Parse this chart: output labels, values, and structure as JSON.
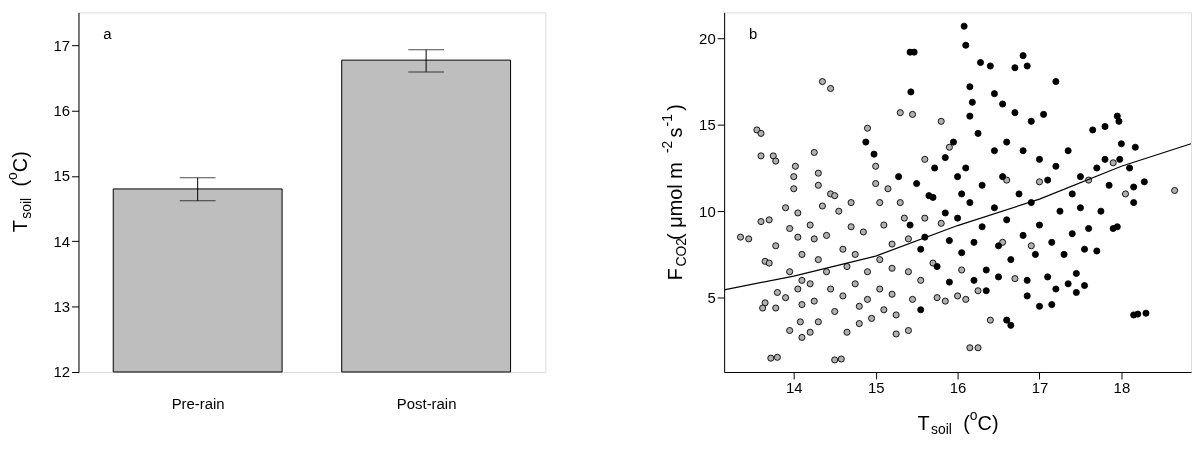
{
  "chart_data": [
    {
      "type": "bar",
      "categories": [
        "Pre-rain",
        "Post-rain"
      ],
      "values": [
        14.8,
        16.77
      ],
      "errors": [
        [
          14.62,
          14.97
        ],
        [
          16.59,
          16.93
        ]
      ],
      "color": "#bebebe",
      "ylabel": "T$_{soil}$ ($^{o}$C)",
      "ylim": [
        12,
        17.5
      ],
      "yticks": [
        12,
        13,
        14,
        15,
        16,
        17
      ],
      "annotations": [
        "a"
      ],
      "grid": false,
      "legend": false
    },
    {
      "type": "scatter",
      "xlabel": "T$_{soil}$ ($^{o}$C)",
      "ylabel": "F$_{CO2}$( μmol m$^{-2}$s$^{-1}$)",
      "xlim": [
        13.15,
        18.85
      ],
      "xticks": [
        14,
        15,
        16,
        17,
        18
      ],
      "ylim": [
        0.7,
        21.5
      ],
      "yticks": [
        5,
        10,
        15,
        20
      ],
      "annotations": [
        "b"
      ],
      "grid": false,
      "legend": false,
      "marker": "circle",
      "series": [
        {
          "color": "#b0b0b0",
          "x": [
            13.35,
            13.45,
            13.55,
            13.6,
            13.6,
            13.75,
            13.78,
            13.6,
            13.7,
            13.65,
            13.7,
            13.78,
            13.65,
            13.62,
            13.78,
            13.8,
            13.72,
            13.8,
            13.9,
            13.95,
            13.95,
            13.9,
            13.95,
            14.0,
            14.0,
            14.02,
            14.05,
            14.05,
            14.1,
            14.1,
            14.05,
            14.1,
            14.08,
            14.1,
            14.2,
            14.25,
            14.3,
            14.3,
            14.35,
            14.25,
            14.3,
            14.2,
            14.25,
            14.3,
            14.2,
            14.35,
            14.45,
            14.45,
            14.5,
            14.4,
            14.4,
            14.45,
            14.5,
            14.5,
            14.58,
            14.55,
            14.6,
            14.65,
            14.6,
            14.65,
            14.7,
            14.7,
            14.75,
            14.75,
            14.8,
            14.8,
            14.9,
            14.85,
            14.9,
            14.9,
            14.95,
            15.0,
            15.0,
            15.05,
            15.05,
            15.05,
            15.1,
            15.1,
            15.15,
            15.2,
            15.2,
            15.2,
            15.25,
            15.25,
            15.3,
            15.35,
            15.3,
            15.45,
            15.4,
            15.4,
            15.45,
            15.4,
            15.55,
            15.6,
            15.6,
            15.7,
            15.75,
            15.8,
            15.8,
            15.85,
            15.9,
            16.0,
            16.1,
            16.05,
            16.15,
            16.25,
            16.4,
            16.6,
            16.55,
            16.7,
            16.9,
            17.0,
            17.6,
            17.9,
            18.05,
            18.65,
            16.25
          ],
          "values": [
            8.5,
            8.4,
            14.7,
            14.5,
            13.2,
            13.2,
            12.9,
            9.4,
            9.5,
            7.1,
            7.0,
            8.0,
            4.7,
            4.4,
            4.4,
            5.3,
            1.5,
            1.55,
            10.2,
            9.0,
            6.5,
            5.0,
            3.1,
            11.3,
            12.0,
            12.6,
            9.9,
            8.5,
            7.5,
            6.0,
            5.5,
            4.6,
            3.6,
            2.7,
            9.2,
            13.4,
            12.2,
            11.5,
            10.3,
            8.4,
            7.2,
            5.8,
            4.8,
            3.6,
            3.0,
            17.5,
            17.1,
            11.0,
            10.9,
            8.6,
            6.5,
            5.5,
            4.2,
            1.4,
            1.45,
            10.0,
            7.8,
            6.8,
            5.1,
            3.0,
            10.5,
            9.1,
            7.5,
            5.8,
            4.5,
            3.5,
            14.8,
            8.8,
            6.5,
            4.9,
            3.8,
            12.6,
            11.6,
            10.5,
            7.2,
            5.5,
            4.3,
            9.2,
            11.3,
            8.1,
            6.7,
            5.2,
            4.0,
            2.9,
            10.5,
            9.6,
            15.7,
            15.6,
            8.4,
            6.5,
            4.9,
            3.1,
            6.0,
            13.0,
            9.6,
            7.0,
            5.0,
            15.2,
            9.3,
            4.8,
            13.7,
            5.1,
            4.9,
            6.6,
            2.1,
            2.1,
            3.7,
            11.8,
            8.2,
            6.1,
            8.0,
            11.7,
            11.8,
            12.8,
            11.0,
            11.2,
            5.4
          ]
        },
        {
          "color": "#000000",
          "x": [
            14.88,
            14.98,
            15.28,
            15.42,
            15.47,
            15.43,
            15.5,
            15.42,
            15.55,
            15.6,
            15.55,
            15.65,
            15.7,
            15.72,
            15.75,
            15.85,
            15.85,
            15.9,
            15.9,
            15.95,
            16.0,
            16.0,
            16.05,
            16.05,
            16.08,
            16.1,
            16.15,
            16.15,
            16.1,
            16.15,
            16.2,
            16.2,
            16.18,
            16.25,
            16.28,
            16.3,
            16.3,
            16.35,
            16.35,
            16.4,
            16.45,
            16.45,
            16.45,
            16.5,
            16.5,
            16.55,
            16.55,
            16.6,
            16.6,
            16.6,
            16.65,
            16.65,
            16.7,
            16.75,
            16.7,
            16.8,
            16.85,
            16.8,
            16.8,
            16.85,
            16.85,
            16.9,
            16.9,
            16.95,
            17.0,
            17.0,
            17.0,
            17.05,
            17.1,
            17.1,
            17.15,
            17.15,
            17.2,
            17.2,
            17.2,
            17.25,
            17.3,
            17.35,
            17.35,
            17.4,
            17.4,
            17.45,
            17.45,
            17.5,
            17.5,
            17.55,
            17.55,
            17.6,
            17.65,
            17.7,
            17.7,
            17.75,
            17.8,
            17.8,
            17.85,
            17.9,
            17.95,
            17.97,
            17.95,
            17.98,
            18.0,
            18.1,
            18.15,
            18.15,
            18.15,
            18.2,
            18.3,
            18.17,
            18.28
          ],
          "values": [
            14.0,
            13.3,
            12.0,
            19.2,
            19.2,
            16.9,
            11.6,
            9.2,
            7.8,
            8.5,
            4.3,
            10.9,
            10.8,
            12.5,
            6.8,
            9.9,
            13.1,
            8.3,
            5.9,
            14.0,
            12.0,
            9.6,
            7.6,
            11.0,
            20.7,
            19.6,
            17.2,
            15.5,
            12.5,
            10.5,
            8.2,
            6.0,
            16.3,
            14.5,
            18.6,
            11.5,
            9.1,
            6.6,
            5.4,
            18.4,
            16.8,
            13.5,
            10.2,
            8.0,
            6.2,
            16.2,
            12.0,
            14.0,
            9.5,
            3.7,
            3.4,
            7.2,
            15.7,
            11.0,
            18.3,
            19.0,
            18.4,
            13.5,
            8.6,
            6.0,
            5.1,
            15.2,
            10.5,
            7.5,
            13.0,
            4.5,
            9.2,
            15.6,
            11.8,
            6.2,
            4.6,
            8.2,
            17.5,
            12.6,
            5.5,
            10.0,
            7.5,
            13.5,
            5.8,
            11.0,
            8.7,
            6.4,
            5.3,
            12.0,
            10.2,
            7.8,
            5.7,
            9.0,
            14.7,
            12.5,
            7.7,
            10.0,
            14.9,
            13.0,
            11.5,
            9.0,
            15.5,
            15.2,
            9.1,
            13.0,
            13.9,
            12.5,
            10.5,
            11.4,
            4.0,
            4.05,
            4.1,
            13.7,
            11.7
          ]
        },
        {
          "type": "line",
          "marker": "none",
          "color": "#000000",
          "x": [
            13.15,
            14,
            15,
            16,
            17,
            18,
            18.85
          ],
          "values": [
            5.45,
            6.25,
            7.4,
            9.17,
            10.7,
            12.6,
            13.9
          ]
        }
      ]
    }
  ]
}
